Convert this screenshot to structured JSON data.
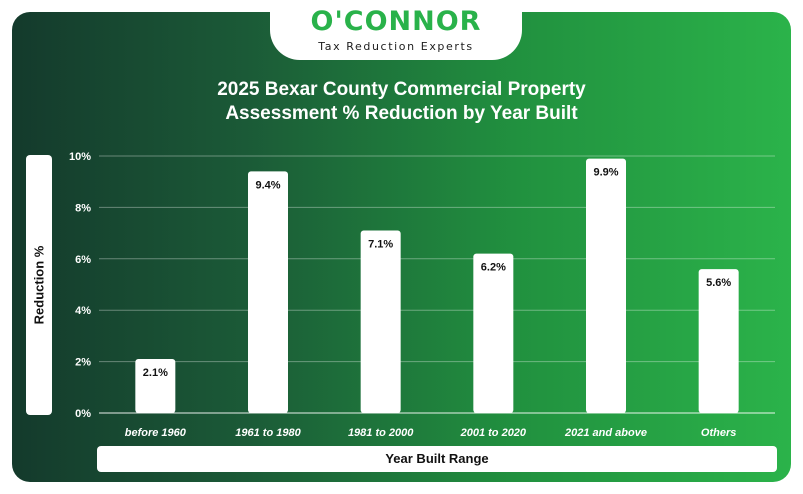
{
  "brand": {
    "name": "O'CONNOR",
    "tagline": "Tax Reduction Experts"
  },
  "colors": {
    "bar": "#ffffff",
    "grid": "#ffffff",
    "brand_green": "#29b24a",
    "background_left": "#143a2c",
    "background_right": "#2bb34a"
  },
  "chart_data": {
    "type": "bar",
    "title_line1": "2025 Bexar County Commercial Property",
    "title_line2": "Assessment % Reduction by Year Built",
    "xlabel": "Year Built Range",
    "ylabel": "Reduction %",
    "categories": [
      "before 1960",
      "1961 to 1980",
      "1981 to 2000",
      "2001 to 2020",
      "2021 and above",
      "Others"
    ],
    "values": [
      2.1,
      9.4,
      7.1,
      6.2,
      9.9,
      5.6
    ],
    "value_labels": [
      "2.1%",
      "9.4%",
      "7.1%",
      "6.2%",
      "9.9%",
      "5.6%"
    ],
    "ylim": [
      0,
      10
    ],
    "yticks": [
      0,
      2,
      4,
      6,
      8,
      10
    ],
    "ytick_labels": [
      "0%",
      "2%",
      "4%",
      "6%",
      "8%",
      "10%"
    ],
    "grid": true,
    "legend": "none"
  }
}
